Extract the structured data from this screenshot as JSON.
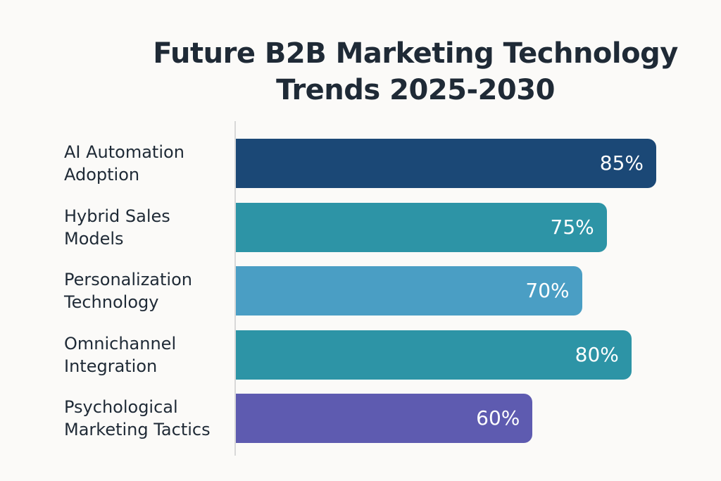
{
  "chart_data": {
    "type": "bar",
    "orientation": "horizontal",
    "title_lines": [
      "Future B2B Marketing Technology",
      "Trends 2025-2030"
    ],
    "categories": [
      [
        "AI Automation",
        "Adoption"
      ],
      [
        "Hybrid Sales",
        "Models"
      ],
      [
        "Personalization",
        "Technology"
      ],
      [
        "Omnichannel",
        "Integration"
      ],
      [
        "Psychological",
        "Marketing Tactics"
      ]
    ],
    "values": [
      85,
      75,
      70,
      80,
      60
    ],
    "value_labels": [
      "85%",
      "75%",
      "70%",
      "80%",
      "60%"
    ],
    "colors": [
      "#1b4876",
      "#2d94a6",
      "#4a9ec4",
      "#2d94a6",
      "#5e5bb0"
    ],
    "xlim": [
      0,
      100
    ],
    "grid": false,
    "legend": "none"
  }
}
